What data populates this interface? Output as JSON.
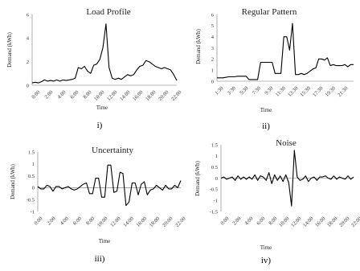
{
  "chart_data": [
    {
      "type": "line",
      "title": "Load Profile",
      "xlabel": "Time",
      "ylabel": "Demand (kWh)",
      "panel_label": "i)",
      "ylim": [
        0,
        6
      ],
      "yticks": [
        "0",
        "2",
        "4",
        "6"
      ],
      "xticks": [
        "0:00",
        "2:00",
        "4:00",
        "6:00",
        "8:00",
        "10:00",
        "12:00",
        "14:00",
        "16:00",
        "18:00",
        "20:00",
        "22:00"
      ],
      "x_count": 48,
      "series": [
        {
          "values": [
            0.2,
            0.25,
            0.2,
            0.3,
            0.45,
            0.35,
            0.4,
            0.35,
            0.45,
            0.35,
            0.45,
            0.4,
            0.45,
            0.5,
            0.6,
            1.5,
            1.4,
            1.6,
            1.2,
            1.0,
            1.7,
            1.8,
            2.2,
            3.2,
            5.2,
            1.5,
            0.6,
            0.5,
            0.6,
            0.5,
            0.7,
            0.9,
            0.8,
            0.9,
            1.3,
            1.6,
            1.7,
            2.1,
            2.0,
            1.8,
            1.6,
            1.5,
            1.4,
            1.5,
            1.4,
            1.3,
            0.9,
            0.4
          ]
        }
      ]
    },
    {
      "type": "line",
      "title": "Regular Pattern",
      "xlabel": "Time",
      "ylabel": "Demand (kWh)",
      "panel_label": "ii)",
      "ylim": [
        0,
        6
      ],
      "yticks": [
        "0",
        "1",
        "2",
        "3",
        "4",
        "5",
        "6"
      ],
      "xticks": [
        "1:30",
        "3:30",
        "5:30",
        "7:30",
        "9:30",
        "11:30",
        "13:30",
        "15:30",
        "17:30",
        "19:30",
        "21:30"
      ],
      "x_count": 48,
      "series": [
        {
          "values": [
            0.3,
            0.3,
            0.3,
            0.35,
            0.4,
            0.4,
            0.4,
            0.45,
            0.45,
            0.45,
            0.45,
            0.15,
            0.15,
            0.15,
            0.15,
            1.7,
            1.7,
            1.7,
            1.7,
            1.7,
            0.7,
            0.7,
            0.7,
            4.0,
            4.0,
            2.8,
            5.2,
            0.6,
            0.6,
            0.7,
            0.6,
            0.7,
            0.9,
            1.1,
            1.2,
            2.0,
            2.0,
            1.9,
            2.1,
            1.4,
            1.5,
            1.4,
            1.4,
            1.4,
            1.5,
            1.3,
            1.5,
            1.5
          ]
        }
      ]
    },
    {
      "type": "line",
      "title": "Uncertainty",
      "xlabel": "Time",
      "ylabel": "Demand (kWh)",
      "panel_label": "iii)",
      "ylim": [
        -1,
        1.5
      ],
      "yticks": [
        "-1",
        "-0.5",
        "0",
        "0.5",
        "1",
        "1.5"
      ],
      "xticks": [
        "0:00",
        "2:00",
        "4:00",
        "6:00",
        "8:00",
        "10:00",
        "12:00",
        "14:00",
        "16:00",
        "18:00",
        "20:00",
        "22:00"
      ],
      "x_count": 48,
      "series": [
        {
          "values": [
            0.05,
            -0.05,
            -0.05,
            0.1,
            0.05,
            -0.15,
            0.05,
            0.05,
            -0.05,
            0.0,
            0.05,
            -0.05,
            -0.1,
            -0.05,
            0.05,
            0.15,
            0.2,
            -0.25,
            -0.25,
            0.4,
            0.4,
            -0.4,
            -0.4,
            0.95,
            0.95,
            -0.2,
            -0.15,
            0.65,
            0.6,
            -0.75,
            -0.6,
            0.2,
            0.2,
            -0.3,
            0.15,
            0.25,
            -0.3,
            -0.1,
            -0.05,
            0.1,
            0.0,
            -0.1,
            0.1,
            -0.05,
            -0.05,
            0.1,
            0.0,
            0.3
          ]
        }
      ]
    },
    {
      "type": "line",
      "title": "Noise",
      "xlabel": "Time",
      "ylabel": "Demand (kWh)",
      "panel_label": "iv)",
      "ylim": [
        -1.5,
        1.5
      ],
      "yticks": [
        "-1.5",
        "-1",
        "-0.5",
        "0",
        "0.5",
        "1",
        "1.5"
      ],
      "xticks": [
        "0:00",
        "2:00",
        "4:00",
        "6:00",
        "8:00",
        "10:00",
        "12:00",
        "14:00",
        "16:00",
        "18:00",
        "20:00",
        "22:00"
      ],
      "x_count": 48,
      "series": [
        {
          "values": [
            0.0,
            0.05,
            -0.05,
            0.0,
            0.05,
            -0.1,
            0.1,
            -0.05,
            0.05,
            -0.05,
            0.05,
            -0.05,
            0.15,
            -0.1,
            0.1,
            0.05,
            -0.1,
            0.25,
            -0.25,
            0.15,
            -0.1,
            0.1,
            -0.15,
            0.15,
            -0.2,
            -1.25,
            1.25,
            0.05,
            -0.1,
            -0.05,
            0.1,
            -0.15,
            0.0,
            0.05,
            -0.1,
            0.05,
            0.05,
            0.1,
            0.0,
            -0.05,
            0.1,
            -0.05,
            0.05,
            0.0,
            -0.05,
            0.1,
            -0.05,
            0.05
          ]
        }
      ]
    }
  ]
}
